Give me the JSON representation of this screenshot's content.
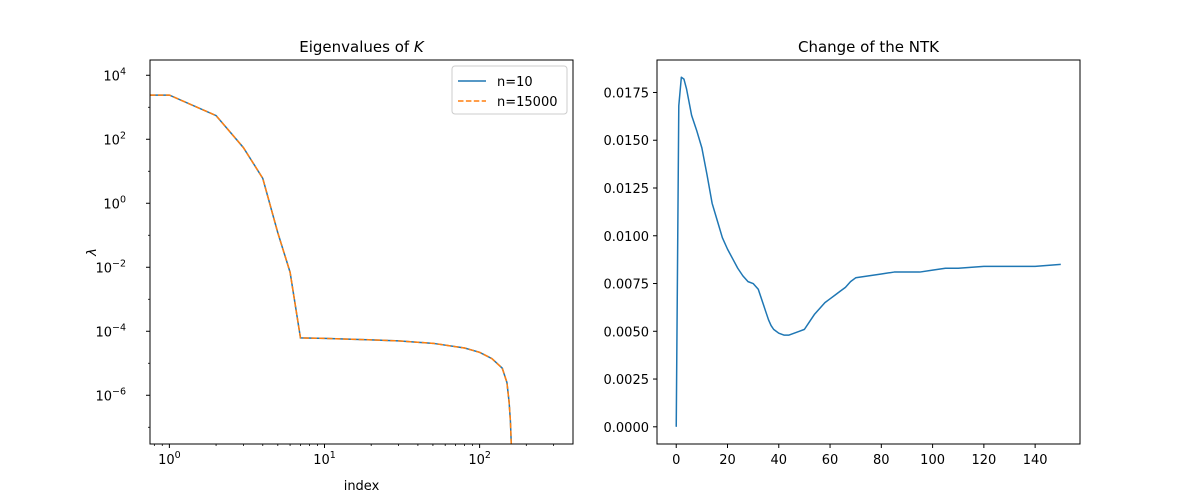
{
  "colors": {
    "series1": "#1f77b4",
    "series2": "#ff7f0e"
  },
  "chart_data": [
    {
      "type": "line",
      "title": "Eigenvalues of K",
      "xlabel": "index",
      "ylabel": "λ",
      "xscale": "log",
      "yscale": "log",
      "xlim": [
        0.75,
        400
      ],
      "ylim": [
        3e-08,
        30000
      ],
      "grid": false,
      "legend": "top-right",
      "x_ticks": [
        {
          "value": 1,
          "base": "10",
          "exp": "0"
        },
        {
          "value": 10,
          "base": "10",
          "exp": "1"
        },
        {
          "value": 100,
          "base": "10",
          "exp": "2"
        }
      ],
      "y_ticks": [
        {
          "value": 1e-06,
          "base": "10",
          "exp": "−6"
        },
        {
          "value": 0.0001,
          "base": "10",
          "exp": "−4"
        },
        {
          "value": 0.01,
          "base": "10",
          "exp": "−2"
        },
        {
          "value": 1,
          "base": "10",
          "exp": "0"
        },
        {
          "value": 100,
          "base": "10",
          "exp": "2"
        },
        {
          "value": 10000,
          "base": "10",
          "exp": "4"
        }
      ],
      "series": [
        {
          "name": "n=10",
          "style": "solid",
          "x": [
            0.75,
            1,
            2,
            3,
            4,
            5,
            6,
            7,
            10,
            20,
            30,
            50,
            80,
            100,
            120,
            140,
            150,
            155,
            158,
            160
          ],
          "y": [
            2400,
            2400,
            550,
            55,
            6,
            0.12,
            0.007,
            6.2e-05,
            6e-05,
            5.4e-05,
            5e-05,
            4.2e-05,
            3e-05,
            2.2e-05,
            1.4e-05,
            7e-06,
            2.5e-06,
            6e-07,
            1.5e-07,
            3e-08
          ]
        },
        {
          "name": "n=15000",
          "style": "dashed",
          "x": [
            0.75,
            1,
            2,
            3,
            4,
            5,
            6,
            7,
            10,
            20,
            30,
            50,
            80,
            100,
            120,
            140,
            150,
            155,
            158,
            160
          ],
          "y": [
            2400,
            2400,
            550,
            55,
            6,
            0.12,
            0.007,
            6.2e-05,
            6e-05,
            5.4e-05,
            5e-05,
            4.2e-05,
            3e-05,
            2.2e-05,
            1.4e-05,
            7e-06,
            2.5e-06,
            6e-07,
            1.5e-07,
            3e-08
          ]
        }
      ]
    },
    {
      "type": "line",
      "title": "Change of the NTK",
      "xlabel": "",
      "ylabel": "",
      "xlim": [
        -7.5,
        157.5
      ],
      "ylim": [
        -0.0009,
        0.0192
      ],
      "grid": false,
      "x_ticks": [
        0,
        20,
        40,
        60,
        80,
        100,
        120,
        140
      ],
      "x_tick_labels": [
        "0",
        "20",
        "40",
        "60",
        "80",
        "100",
        "120",
        "140"
      ],
      "y_ticks": [
        0,
        0.0025,
        0.005,
        0.0075,
        0.01,
        0.0125,
        0.015,
        0.0175
      ],
      "y_tick_labels": [
        "0.0000",
        "0.0025",
        "0.0050",
        "0.0075",
        "0.0100",
        "0.0125",
        "0.0150",
        "0.0175"
      ],
      "series": [
        {
          "x": [
            0,
            1,
            2,
            3,
            4,
            5,
            6,
            8,
            10,
            12,
            14,
            16,
            18,
            20,
            22,
            24,
            26,
            28,
            30,
            32,
            33,
            34,
            35,
            36,
            37,
            38,
            40,
            42,
            44,
            46,
            48,
            50,
            52,
            54,
            56,
            58,
            60,
            62,
            64,
            66,
            68,
            70,
            75,
            80,
            85,
            90,
            95,
            100,
            105,
            110,
            120,
            130,
            140,
            150
          ],
          "y": [
            0.0,
            0.0168,
            0.0183,
            0.0182,
            0.0177,
            0.017,
            0.0163,
            0.0155,
            0.0146,
            0.0132,
            0.0117,
            0.0108,
            0.0099,
            0.0093,
            0.0088,
            0.0083,
            0.0079,
            0.0076,
            0.0075,
            0.0072,
            0.0068,
            0.0064,
            0.006,
            0.0056,
            0.0053,
            0.0051,
            0.0049,
            0.0048,
            0.0048,
            0.0049,
            0.005,
            0.0051,
            0.0055,
            0.0059,
            0.0062,
            0.0065,
            0.0067,
            0.0069,
            0.0071,
            0.0073,
            0.0076,
            0.0078,
            0.0079,
            0.008,
            0.0081,
            0.0081,
            0.0081,
            0.0082,
            0.0083,
            0.0083,
            0.0084,
            0.0084,
            0.0084,
            0.0085
          ]
        }
      ]
    }
  ]
}
